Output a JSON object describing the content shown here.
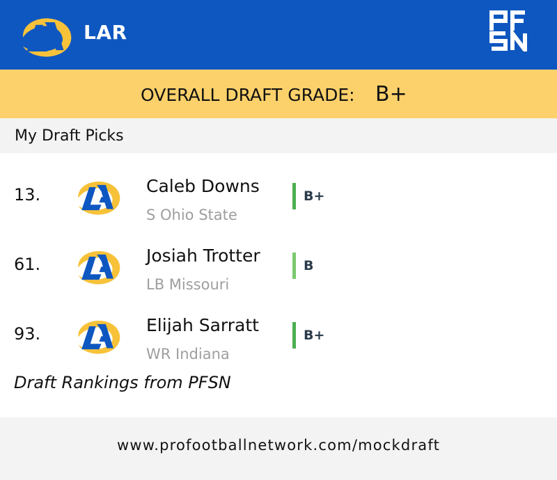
{
  "header": {
    "team_abbr": "LAR",
    "team_logo_icon": "rams-la-logo-icon",
    "brand_logo_icon": "pfsn-logo-icon",
    "colors": {
      "header_bg": "#0e57c0",
      "grade_bar_bg": "#fcd16b",
      "logo_gold": "#f7c23a",
      "logo_blue": "#0e57c0"
    }
  },
  "overall": {
    "label": "OVERALL DRAFT GRADE:",
    "grade": "B+"
  },
  "section_title": "My Draft Picks",
  "picks": [
    {
      "number": "13.",
      "name": "Caleb Downs",
      "meta": "S Ohio State",
      "grade": "B+",
      "grade_color": "#4caf50"
    },
    {
      "number": "61.",
      "name": "Josiah Trotter",
      "meta": "LB Missouri",
      "grade": "B",
      "grade_color": "#7bc96f"
    },
    {
      "number": "93.",
      "name": "Elijah Sarratt",
      "meta": "WR Indiana",
      "grade": "B+",
      "grade_color": "#4caf50"
    }
  ],
  "source_note": "Draft Rankings from PFSN",
  "footer_url": "www.profootballnetwork.com/mockdraft"
}
